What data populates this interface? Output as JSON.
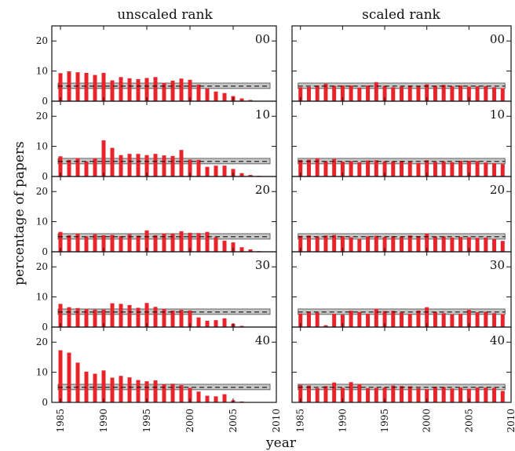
{
  "chart_data": {
    "type": "bar",
    "column_titles": [
      "unscaled rank",
      "scaled rank"
    ],
    "ylabel": "percentage of papers",
    "xlabel": "year",
    "x_range": [
      1984,
      2010
    ],
    "x_ticks": [
      1985,
      1990,
      1995,
      2000,
      2005,
      2010
    ],
    "ylim": [
      0,
      25
    ],
    "y_ticks": [
      0,
      10,
      20
    ],
    "years": [
      1985,
      1986,
      1987,
      1988,
      1989,
      1990,
      1991,
      1992,
      1993,
      1994,
      1995,
      1996,
      1997,
      1998,
      1999,
      2000,
      2001,
      2002,
      2003,
      2004,
      2005,
      2006,
      2007,
      2008,
      2009
    ],
    "reference_band": {
      "mean": 5.0,
      "lower": 4.2,
      "upper": 6.0
    },
    "bar_color": "#e8232a",
    "band_color": "#c8c8c8",
    "rows": [
      {
        "label": "00",
        "unscaled": [
          9.3,
          9.9,
          9.6,
          9.4,
          8.7,
          9.4,
          6.9,
          8.0,
          7.6,
          7.3,
          7.7,
          8.0,
          6.1,
          6.8,
          7.5,
          7.1,
          5.5,
          4.2,
          3.2,
          2.7,
          1.7,
          0.9,
          0.4,
          0.1,
          0
        ],
        "scaled": [
          4.6,
          4.7,
          5.2,
          5.8,
          5.1,
          5.2,
          5.2,
          4.5,
          5.2,
          6.3,
          5.1,
          4.6,
          4.8,
          5.2,
          4.9,
          5.6,
          5.1,
          5.4,
          4.9,
          5.2,
          4.8,
          4.9,
          5.0,
          4.6,
          4.3
        ]
      },
      {
        "label": "10",
        "unscaled": [
          6.7,
          5.5,
          6.1,
          5.0,
          6.0,
          12.0,
          9.5,
          7.1,
          7.5,
          7.5,
          7.1,
          7.5,
          7.0,
          6.8,
          8.8,
          5.6,
          5.5,
          3.2,
          3.6,
          3.6,
          2.5,
          1.1,
          0.5,
          0.2,
          0
        ],
        "scaled": [
          5.5,
          5.6,
          6.1,
          5.1,
          5.8,
          4.9,
          5.1,
          4.7,
          5.3,
          5.4,
          5.0,
          5.0,
          5.2,
          4.9,
          4.5,
          5.4,
          4.8,
          5.0,
          4.7,
          5.2,
          5.2,
          5.1,
          4.6,
          4.4,
          4.1
        ]
      },
      {
        "label": "20",
        "unscaled": [
          6.6,
          5.5,
          6.0,
          5.1,
          5.8,
          5.5,
          5.6,
          5.2,
          5.8,
          5.4,
          7.1,
          5.5,
          6.1,
          6.0,
          6.8,
          6.3,
          6.2,
          6.6,
          4.8,
          3.7,
          3.1,
          1.5,
          0.8,
          0.2,
          0
        ],
        "scaled": [
          5.3,
          5.4,
          5.0,
          5.4,
          5.6,
          5.2,
          4.8,
          4.2,
          5.1,
          5.3,
          4.9,
          5.2,
          5.0,
          5.4,
          5.2,
          6.0,
          5.0,
          5.1,
          4.7,
          4.9,
          4.8,
          4.6,
          4.7,
          4.2,
          3.6
        ]
      },
      {
        "label": "30",
        "unscaled": [
          7.7,
          6.6,
          6.3,
          6.0,
          5.8,
          5.8,
          7.9,
          7.7,
          7.3,
          6.4,
          8.0,
          6.7,
          6.0,
          5.5,
          5.7,
          5.5,
          3.2,
          2.1,
          2.3,
          2.9,
          1.1,
          0.4,
          0,
          0,
          0
        ],
        "scaled": [
          4.5,
          4.9,
          4.8,
          0.6,
          4.4,
          4.1,
          5.4,
          5.0,
          4.4,
          6.1,
          5.3,
          5.4,
          4.8,
          4.4,
          5.5,
          6.6,
          5.0,
          4.6,
          4.2,
          4.4,
          5.7,
          4.9,
          5.1,
          4.6,
          4.3
        ]
      },
      {
        "label": "40",
        "unscaled": [
          17.3,
          16.5,
          13.2,
          10.2,
          9.5,
          10.6,
          8.2,
          8.8,
          8.3,
          7.4,
          7.0,
          7.3,
          6.0,
          6.2,
          5.7,
          4.8,
          3.6,
          2.2,
          2.0,
          2.7,
          0.7,
          0.3,
          0,
          0,
          0
        ],
        "scaled": [
          5.8,
          5.6,
          4.7,
          5.4,
          6.6,
          4.8,
          6.7,
          6.1,
          4.7,
          4.8,
          4.9,
          5.6,
          5.4,
          5.3,
          4.7,
          4.4,
          5.2,
          5.1,
          4.6,
          4.9,
          4.5,
          4.9,
          4.9,
          4.8,
          3.8
        ]
      }
    ]
  }
}
